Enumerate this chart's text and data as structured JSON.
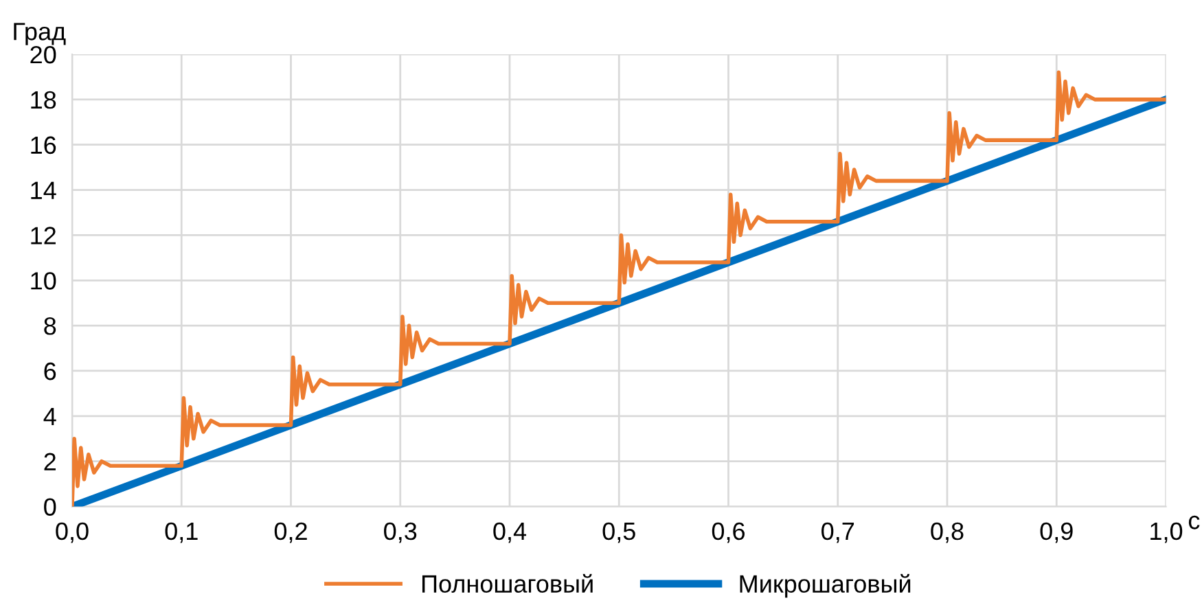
{
  "chart_data": {
    "type": "line",
    "xlabel": "с",
    "ylabel": "Град",
    "xlim": [
      0,
      1
    ],
    "ylim": [
      0,
      20
    ],
    "xticks": [
      {
        "value": 0,
        "label": "0,0"
      },
      {
        "value": 0.1,
        "label": "0,1"
      },
      {
        "value": 0.2,
        "label": "0,2"
      },
      {
        "value": 0.3,
        "label": "0,3"
      },
      {
        "value": 0.4,
        "label": "0,4"
      },
      {
        "value": 0.5,
        "label": "0,5"
      },
      {
        "value": 0.6,
        "label": "0,6"
      },
      {
        "value": 0.7,
        "label": "0,7"
      },
      {
        "value": 0.8,
        "label": "0,8"
      },
      {
        "value": 0.9,
        "label": "0,9"
      },
      {
        "value": 1.0,
        "label": "1,0"
      }
    ],
    "yticks": [
      0,
      2,
      4,
      6,
      8,
      10,
      12,
      14,
      16,
      18,
      20
    ],
    "grid": true,
    "legend": "bottom",
    "marker": "none",
    "line_style": "solid",
    "series": [
      {
        "name": "Полношаговый",
        "color": "#ed7d31",
        "x": [
          0,
          0.002,
          0.005,
          0.008,
          0.011,
          0.015,
          0.02,
          0.027,
          0.035,
          0.099,
          0.1,
          0.102,
          0.105,
          0.108,
          0.111,
          0.115,
          0.12,
          0.127,
          0.135,
          0.199,
          0.2,
          0.202,
          0.205,
          0.208,
          0.211,
          0.215,
          0.22,
          0.227,
          0.235,
          0.299,
          0.3,
          0.302,
          0.305,
          0.308,
          0.311,
          0.315,
          0.32,
          0.327,
          0.335,
          0.399,
          0.4,
          0.402,
          0.405,
          0.408,
          0.411,
          0.415,
          0.42,
          0.427,
          0.435,
          0.499,
          0.5,
          0.502,
          0.505,
          0.508,
          0.511,
          0.515,
          0.52,
          0.527,
          0.535,
          0.599,
          0.6,
          0.602,
          0.605,
          0.608,
          0.611,
          0.615,
          0.62,
          0.627,
          0.635,
          0.699,
          0.7,
          0.702,
          0.705,
          0.708,
          0.711,
          0.715,
          0.72,
          0.727,
          0.735,
          0.799,
          0.8,
          0.802,
          0.805,
          0.808,
          0.811,
          0.815,
          0.82,
          0.827,
          0.835,
          0.899,
          0.9,
          0.902,
          0.905,
          0.908,
          0.911,
          0.915,
          0.92,
          0.927,
          0.935,
          1.0
        ],
        "values": [
          0,
          3.0,
          0.9,
          2.6,
          1.2,
          2.3,
          1.5,
          2.0,
          1.8,
          1.8,
          1.8,
          4.8,
          2.7,
          4.4,
          3.0,
          4.1,
          3.3,
          3.8,
          3.6,
          3.6,
          3.6,
          6.6,
          4.5,
          6.2,
          4.8,
          5.9,
          5.1,
          5.6,
          5.4,
          5.4,
          5.4,
          8.4,
          6.3,
          8.0,
          6.6,
          7.7,
          6.9,
          7.4,
          7.2,
          7.2,
          7.2,
          10.2,
          8.1,
          9.8,
          8.4,
          9.5,
          8.7,
          9.2,
          9.0,
          9.0,
          9.0,
          12.0,
          9.9,
          11.6,
          10.2,
          11.3,
          10.5,
          11.0,
          10.8,
          10.8,
          10.8,
          13.8,
          11.7,
          13.4,
          12.0,
          13.1,
          12.3,
          12.8,
          12.6,
          12.6,
          12.6,
          15.6,
          13.5,
          15.2,
          13.8,
          14.9,
          14.1,
          14.6,
          14.4,
          14.4,
          14.4,
          17.4,
          15.3,
          17.0,
          15.6,
          16.7,
          15.9,
          16.4,
          16.2,
          16.2,
          16.2,
          19.2,
          17.1,
          18.8,
          17.4,
          18.5,
          17.7,
          18.2,
          18.0,
          18.0
        ]
      },
      {
        "name": "Микрошаговый",
        "color": "#0070c0",
        "x": [
          0,
          1.0
        ],
        "values": [
          0,
          18.0
        ]
      }
    ]
  }
}
